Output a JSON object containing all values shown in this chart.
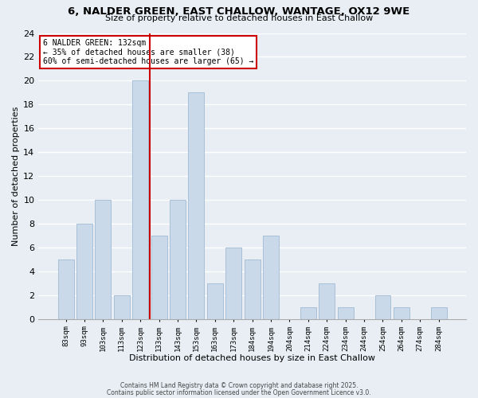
{
  "title": "6, NALDER GREEN, EAST CHALLOW, WANTAGE, OX12 9WE",
  "subtitle": "Size of property relative to detached houses in East Challow",
  "xlabel": "Distribution of detached houses by size in East Challow",
  "ylabel": "Number of detached properties",
  "bar_color": "#c9d9ea",
  "bar_edge_color": "#a8c0d6",
  "background_color": "#e8eef4",
  "grid_color": "#ffffff",
  "bins": [
    "83sqm",
    "93sqm",
    "103sqm",
    "113sqm",
    "123sqm",
    "133sqm",
    "143sqm",
    "153sqm",
    "163sqm",
    "173sqm",
    "184sqm",
    "194sqm",
    "204sqm",
    "214sqm",
    "224sqm",
    "234sqm",
    "244sqm",
    "254sqm",
    "264sqm",
    "274sqm",
    "284sqm"
  ],
  "values": [
    5,
    8,
    10,
    2,
    20,
    7,
    10,
    19,
    3,
    6,
    5,
    7,
    0,
    1,
    3,
    1,
    0,
    2,
    1,
    0,
    1
  ],
  "ylim": [
    0,
    24
  ],
  "yticks": [
    0,
    2,
    4,
    6,
    8,
    10,
    12,
    14,
    16,
    18,
    20,
    22,
    24
  ],
  "vline_color": "#cc0000",
  "annotation_title": "6 NALDER GREEN: 132sqm",
  "annotation_line1": "← 35% of detached houses are smaller (38)",
  "annotation_line2": "60% of semi-detached houses are larger (65) →",
  "annotation_box_color": "#ffffff",
  "annotation_box_edge_color": "#cc0000",
  "footnote1": "Contains HM Land Registry data © Crown copyright and database right 2025.",
  "footnote2": "Contains public sector information licensed under the Open Government Licence v3.0."
}
